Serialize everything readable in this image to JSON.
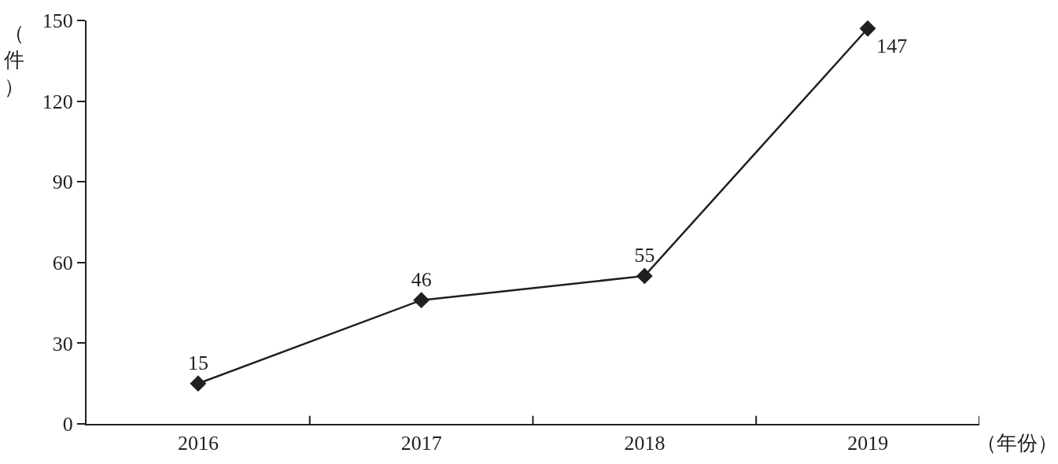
{
  "chart_data": {
    "type": "line",
    "ylabel": "（件）",
    "xlabel": "（年份）",
    "categories": [
      "2016",
      "2017",
      "2018",
      "2019"
    ],
    "series": [
      {
        "color": "#231f20",
        "values": [
          15,
          46,
          55,
          147
        ]
      }
    ],
    "ylim": [
      0,
      150
    ],
    "yticks": [
      0,
      30,
      60,
      90,
      120,
      150
    ],
    "marker": "diamond",
    "line_style": "solid",
    "data_labels": true
  }
}
